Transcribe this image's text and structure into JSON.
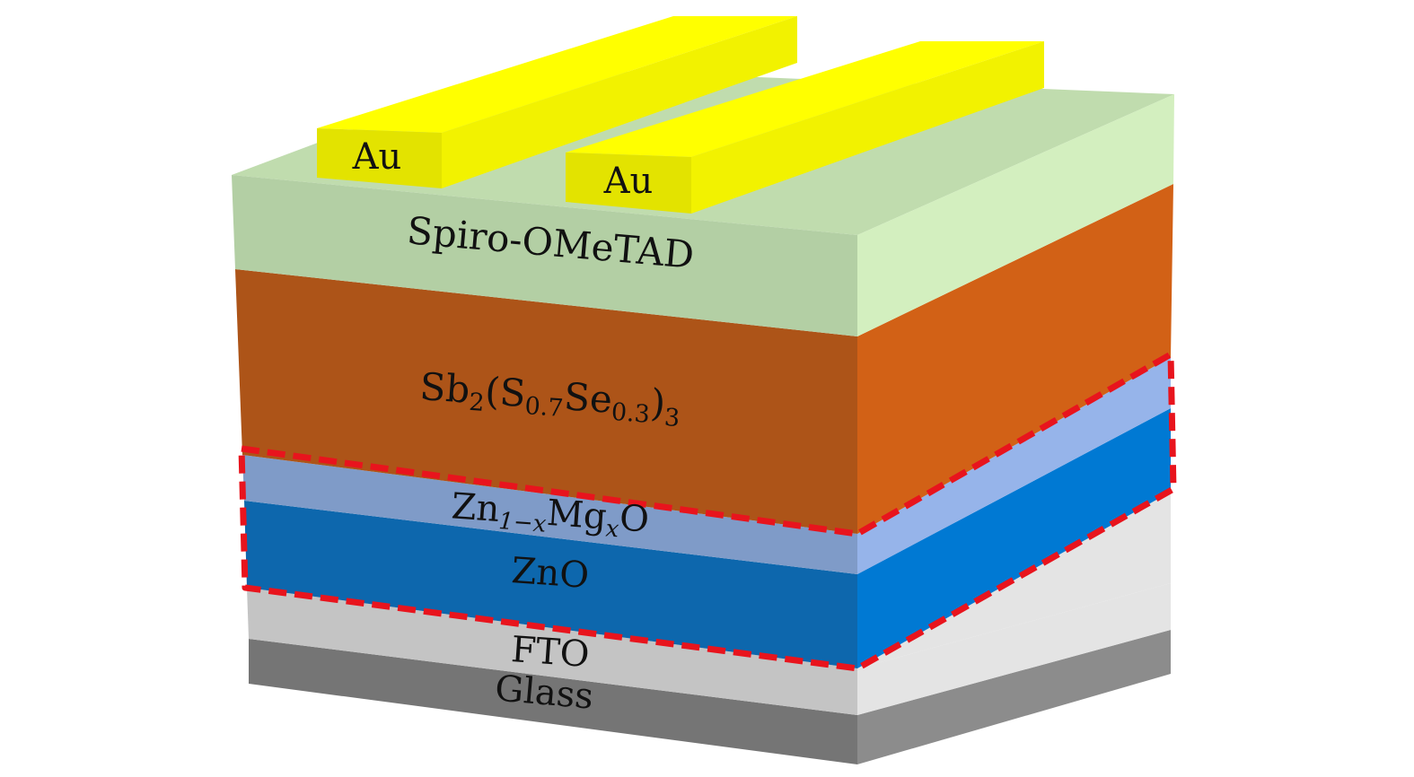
{
  "layers": [
    {
      "id": "glass",
      "label": "Glass"
    },
    {
      "id": "fto",
      "label": "FTO"
    },
    {
      "id": "zno",
      "label": "ZnO"
    },
    {
      "id": "znmgo",
      "label": "Zn",
      "sub1": "1−x",
      "label2": "Mg",
      "sub2": "x",
      "label3": "O"
    },
    {
      "id": "absorber",
      "label": "Sb",
      "sub1": "2",
      "label2": "(S",
      "sub2": "0.7",
      "label3": "Se",
      "sub3": "0.3",
      "label4": ")",
      "sub4": "3"
    },
    {
      "id": "htl",
      "label": "Spiro-OMeTAD"
    }
  ],
  "electrodes": [
    {
      "id": "au-left",
      "label": "Au"
    },
    {
      "id": "au-right",
      "label": "Au"
    }
  ],
  "colors": {
    "glass_front": "#757575",
    "glass_side": "#8c8c8c",
    "fto_front": "#c4c4c4",
    "fto_side": "#e4e4e4",
    "zno_front": "#0d67ad",
    "zno_side": "#0079d3",
    "znmgo_front": "#7f9bc8",
    "znmgo_side": "#96b4ea",
    "absorber_front": "#ad5418",
    "absorber_side": "#d26116",
    "htl_front": "#b3cfa4",
    "htl_side": "#d3efbf",
    "htl_top": "#c0dcae",
    "au_front": "#e3e300",
    "au_top": "#ffff00",
    "au_side": "#f2f200",
    "highlight": "#e8141d"
  }
}
